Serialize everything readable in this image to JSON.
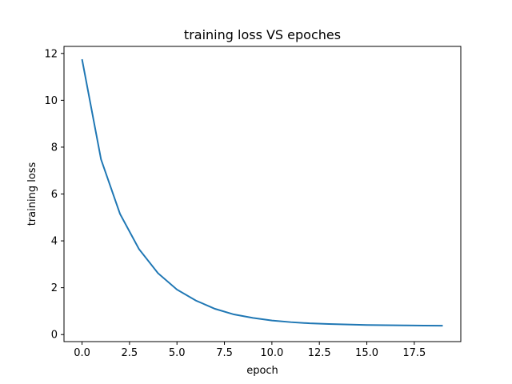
{
  "chart_data": {
    "type": "line",
    "title": "training loss VS epoches",
    "xlabel": "epoch",
    "ylabel": "training loss",
    "xlim": [
      -0.95,
      19.95
    ],
    "ylim": [
      -0.3,
      12.3
    ],
    "xticks": [
      0,
      2.5,
      5,
      7.5,
      10,
      12.5,
      15,
      17.5
    ],
    "xtick_labels": [
      "0.0",
      "2.5",
      "5.0",
      "7.5",
      "10.0",
      "12.5",
      "15.0",
      "17.5"
    ],
    "yticks": [
      0,
      2,
      4,
      6,
      8,
      10,
      12
    ],
    "ytick_labels": [
      "0",
      "2",
      "4",
      "6",
      "8",
      "10",
      "12"
    ],
    "grid": false,
    "legend": "none",
    "line_color": "#1f77b4",
    "series": [
      {
        "x": [
          0,
          1,
          2,
          3,
          4,
          5,
          6,
          7,
          8,
          9,
          10,
          11,
          12,
          13,
          14,
          15,
          16,
          17,
          18,
          19
        ],
        "values": [
          11.75,
          7.48,
          5.15,
          3.65,
          2.62,
          1.92,
          1.45,
          1.1,
          0.86,
          0.71,
          0.6,
          0.53,
          0.48,
          0.45,
          0.43,
          0.41,
          0.4,
          0.39,
          0.385,
          0.38
        ]
      }
    ]
  }
}
